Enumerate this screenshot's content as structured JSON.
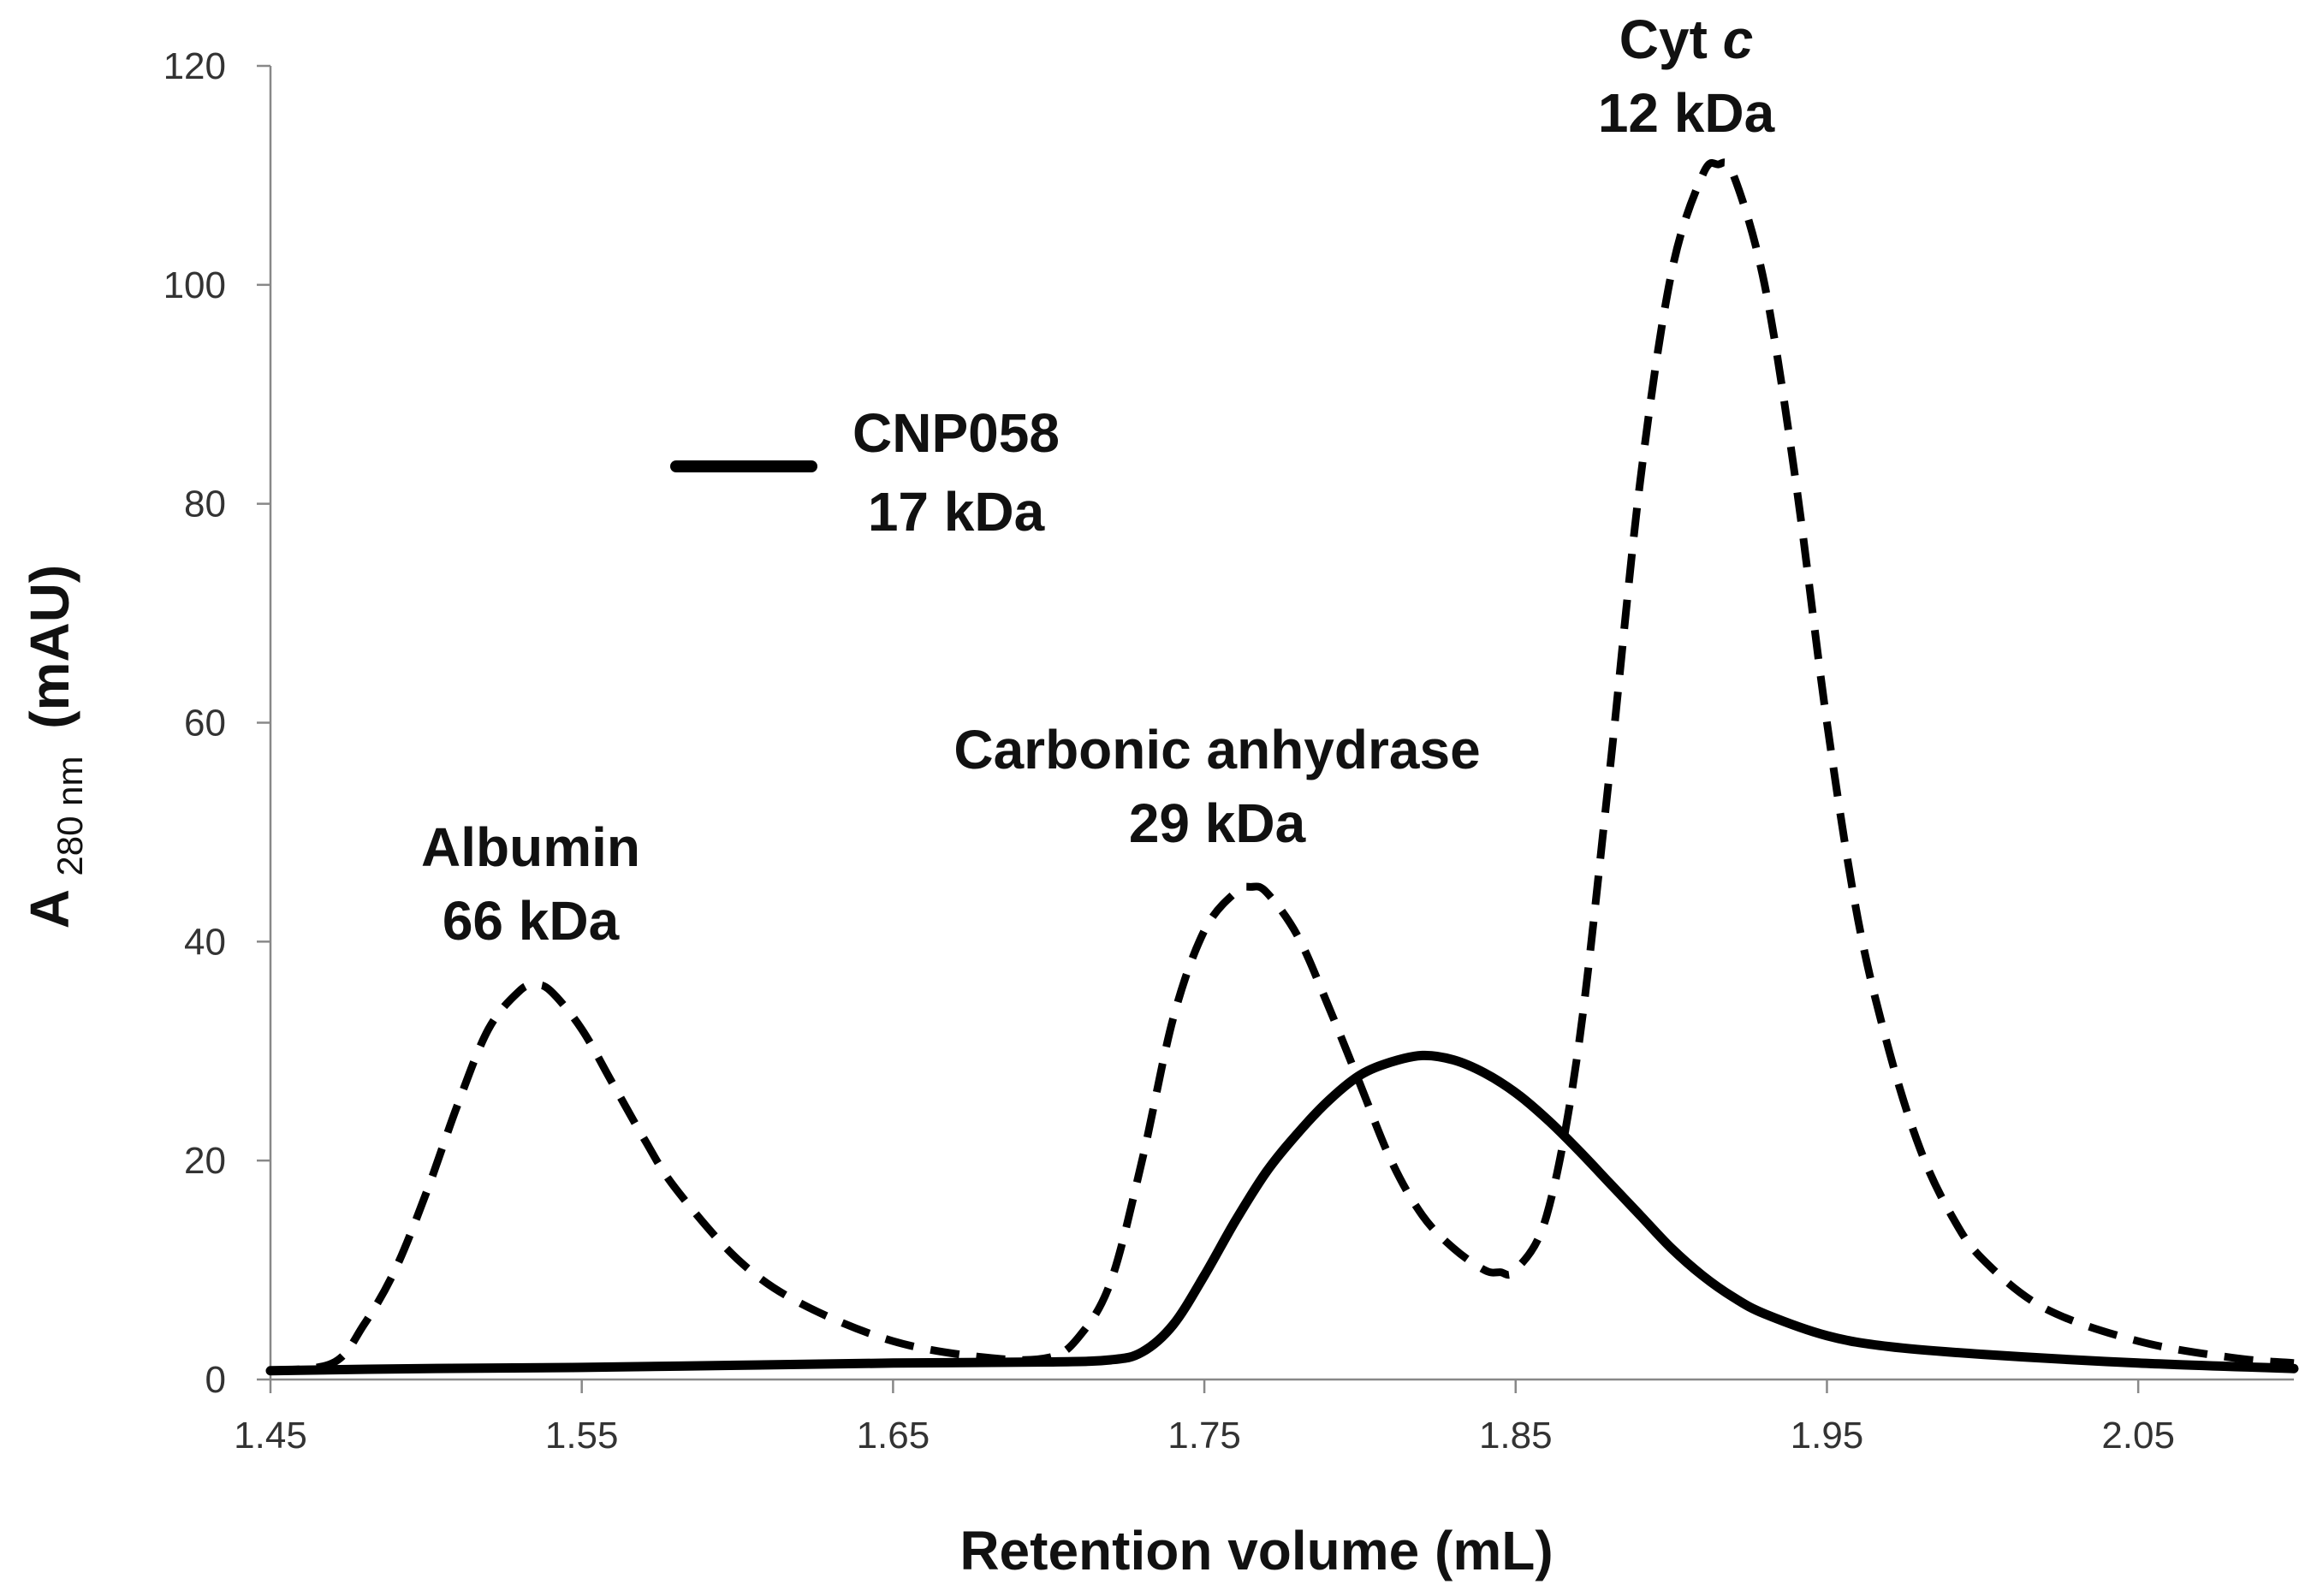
{
  "chart_data": {
    "type": "line",
    "xlabel": "Retention volume (mL)",
    "ylabel": {
      "main": "A",
      "subscript": "280 nm",
      "unit": "(mAU)"
    },
    "xlim": [
      1.45,
      2.1
    ],
    "ylim": [
      0,
      120
    ],
    "x_ticks": [
      "1.45",
      "1.55",
      "1.65",
      "1.75",
      "1.85",
      "1.95",
      "2.05"
    ],
    "y_ticks": [
      "0",
      "20",
      "40",
      "60",
      "80",
      "100",
      "120"
    ],
    "grid": false,
    "legend": {
      "placement": "upper-left",
      "entries": [
        {
          "line1": "CNP058",
          "line2": "17 kDa",
          "style": "solid"
        }
      ]
    },
    "annotations": [
      {
        "id": "albumin",
        "line1": "Albumin",
        "line2": "66 kDa",
        "x": 1.535,
        "y": 36
      },
      {
        "id": "carbonic",
        "line1": "Carbonic anhydrase",
        "line2": "29 kDa",
        "x": 1.768,
        "y": 45
      },
      {
        "id": "cytc",
        "line1": "Cyt",
        "line1_italic": "c",
        "line2": "12 kDa",
        "x": 1.915,
        "y": 111
      }
    ],
    "series": [
      {
        "style": "solid",
        "x": [
          1.45,
          1.5,
          1.55,
          1.6,
          1.65,
          1.7,
          1.72,
          1.73,
          1.74,
          1.75,
          1.76,
          1.77,
          1.78,
          1.79,
          1.8,
          1.81,
          1.82,
          1.83,
          1.84,
          1.85,
          1.86,
          1.87,
          1.88,
          1.89,
          1.9,
          1.91,
          1.92,
          1.93,
          1.95,
          1.97,
          2.0,
          2.05,
          2.1
        ],
        "y": [
          0.8,
          1.0,
          1.1,
          1.3,
          1.5,
          1.6,
          1.8,
          2.5,
          5.0,
          9.5,
          14.5,
          19.0,
          22.5,
          25.5,
          27.8,
          29.0,
          29.6,
          29.2,
          28.0,
          26.2,
          23.8,
          21.0,
          18.0,
          15.0,
          12.0,
          9.5,
          7.5,
          6.0,
          4.0,
          3.0,
          2.3,
          1.5,
          1.0
        ]
      },
      {
        "style": "dashed",
        "x": [
          1.45,
          1.47,
          1.48,
          1.49,
          1.5,
          1.51,
          1.52,
          1.53,
          1.535,
          1.54,
          1.55,
          1.56,
          1.57,
          1.58,
          1.6,
          1.62,
          1.65,
          1.68,
          1.7,
          1.71,
          1.72,
          1.73,
          1.74,
          1.75,
          1.76,
          1.765,
          1.77,
          1.78,
          1.79,
          1.8,
          1.81,
          1.82,
          1.83,
          1.84,
          1.845,
          1.85,
          1.86,
          1.87,
          1.88,
          1.89,
          1.9,
          1.91,
          1.915,
          1.92,
          1.93,
          1.94,
          1.95,
          1.96,
          1.97,
          1.98,
          1.99,
          2.0,
          2.02,
          2.05,
          2.08,
          2.1
        ],
        "y": [
          0.8,
          1.5,
          5.0,
          10.0,
          17.0,
          25.0,
          32.0,
          35.5,
          36.0,
          35.5,
          32.0,
          27.0,
          22.0,
          17.5,
          11.0,
          7.0,
          3.5,
          2.0,
          2.0,
          4.0,
          9.0,
          20.0,
          33.0,
          41.0,
          44.5,
          45.0,
          44.5,
          40.5,
          34.0,
          27.0,
          20.0,
          15.0,
          12.0,
          10.0,
          9.8,
          10.0,
          15.0,
          30.0,
          55.0,
          82.0,
          101.0,
          110.0,
          111.0,
          110.0,
          100.0,
          82.0,
          60.0,
          42.0,
          30.0,
          21.0,
          15.0,
          11.0,
          6.5,
          3.5,
          2.0,
          1.5
        ]
      }
    ]
  }
}
